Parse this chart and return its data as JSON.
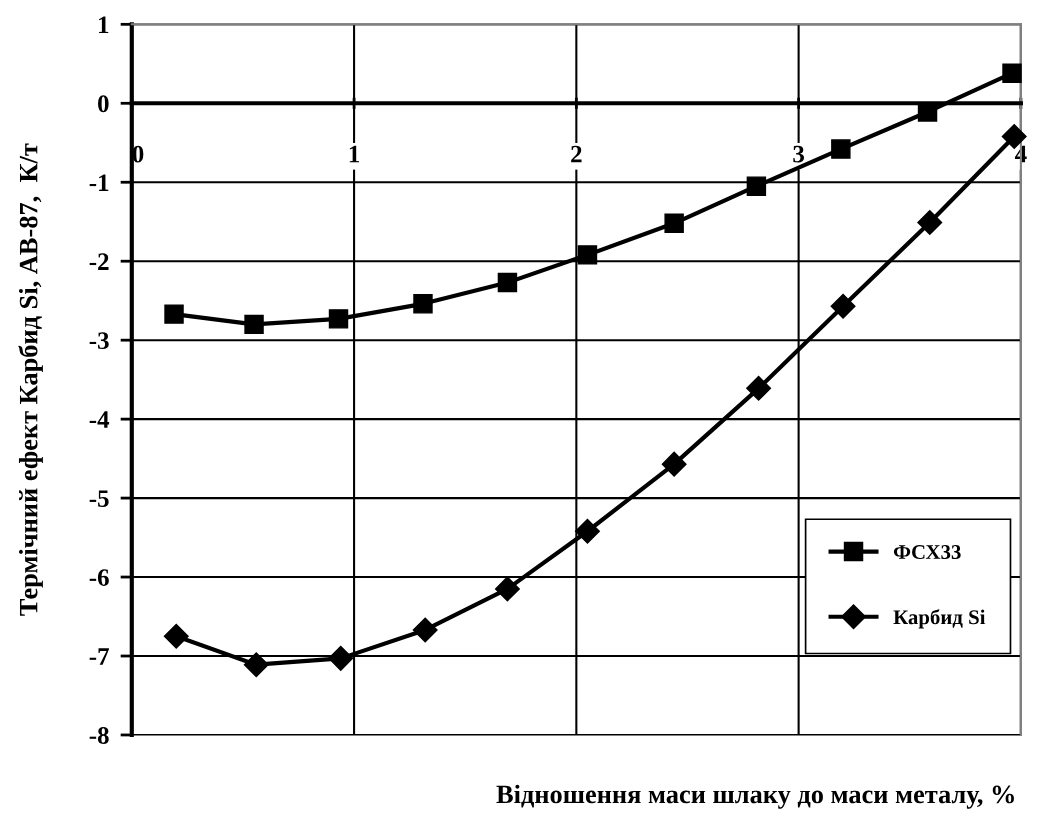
{
  "chart_data": {
    "type": "line",
    "xlabel": "Відношення маси шлаку до маси металу, %",
    "ylabel": "Термічний ефект Карбид Si, АВ-87,  К/т",
    "xlim": [
      0,
      4
    ],
    "xticks": [
      0,
      1,
      2,
      3,
      4
    ],
    "ylim": [
      -8,
      1
    ],
    "yticks": [
      -8,
      -7,
      -6,
      -5,
      -4,
      -3,
      -2,
      -1,
      0,
      1
    ],
    "grid": true,
    "legend": "lower right",
    "line_style": "solid",
    "series": [
      {
        "name": "ФСХ33",
        "color": "#000000",
        "marker": "square",
        "x": [
          0.19,
          0.55,
          0.93,
          1.31,
          1.69,
          2.05,
          2.44,
          2.81,
          3.19,
          3.58,
          3.96
        ],
        "values": [
          -2.67,
          -2.8,
          -2.73,
          -2.54,
          -2.27,
          -1.92,
          -1.52,
          -1.05,
          -0.58,
          -0.11,
          0.38
        ]
      },
      {
        "name": "Карбид Si",
        "color": "#000000",
        "marker": "diamond",
        "x": [
          0.2,
          0.56,
          0.94,
          1.32,
          1.69,
          2.05,
          2.44,
          2.82,
          3.2,
          3.59,
          3.97
        ],
        "values": [
          -6.75,
          -7.11,
          -7.03,
          -6.67,
          -6.15,
          -5.42,
          -4.57,
          -3.61,
          -2.57,
          -1.51,
          -0.42
        ]
      }
    ]
  }
}
